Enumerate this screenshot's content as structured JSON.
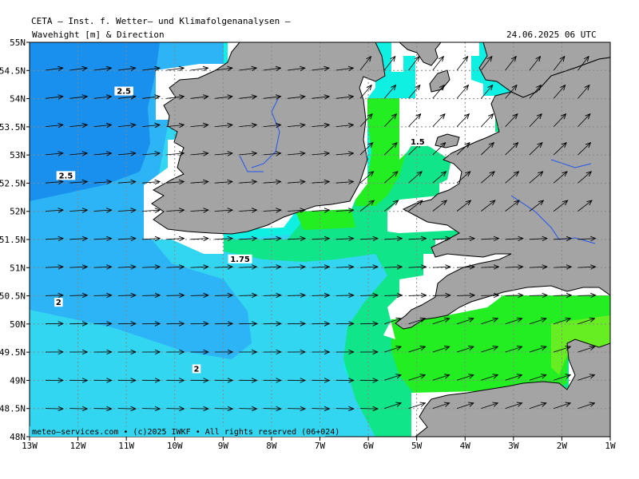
{
  "header": {
    "institute": "CETA — Inst. f. Wetter— und Klimafolgenanalysen —",
    "title": "Wavehight [m] & Direction",
    "valid_time": "24.06.2025 06 UTC"
  },
  "footer": "meteo—services.com • (c)2025 IWKF • All rights reserved (06+024)",
  "axes": {
    "lon_labels": [
      "13W",
      "12W",
      "11W",
      "10W",
      "9W",
      "8W",
      "7W",
      "6W",
      "5W",
      "4W",
      "3W",
      "2W",
      "1W"
    ],
    "lat_labels": [
      "55N",
      "54.5N",
      "54N",
      "53.5N",
      "53N",
      "52.5N",
      "52N",
      "51.5N",
      "51N",
      "50.5N",
      "50N",
      "49.5N",
      "49N",
      "48.5N",
      "48N"
    ]
  },
  "contour_labels": [
    {
      "text": "2.5",
      "lon": -11.05,
      "lat": 54.1
    },
    {
      "text": "2.5",
      "lon": -12.25,
      "lat": 52.6
    },
    {
      "text": "1.5",
      "lon": -4.98,
      "lat": 53.2
    },
    {
      "text": "1.75",
      "lon": -8.65,
      "lat": 51.12
    },
    {
      "text": "2",
      "lon": -12.4,
      "lat": 50.35
    },
    {
      "text": "2",
      "lon": -9.55,
      "lat": 49.17
    }
  ],
  "colors": {
    "wave_2_5_plus": "#1a90ee",
    "wave_2_to_2_5": "#2cb4f6",
    "wave_1_75_to_2": "#33d6f0",
    "wave_1_5_to_1_75": "#10f0e2",
    "wave_1_25_to_1_5": "#10e58a",
    "wave_1_to_1_25": "#22ee22",
    "wave_below_1": "#66ee22",
    "land": "#a4a4a4"
  }
}
